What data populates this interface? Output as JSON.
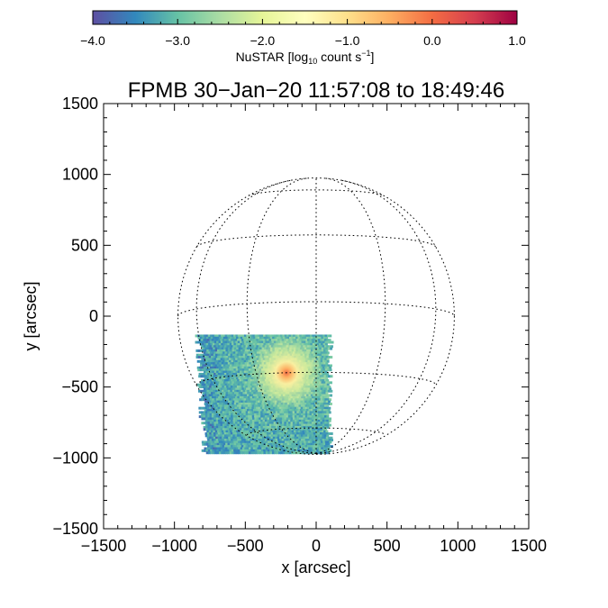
{
  "chart_data": {
    "type": "heatmap",
    "title": "FPMB 30−Jan−20 11:57:08 to 18:49:46",
    "xlabel": "x [arcsec]",
    "ylabel": "y [arcsec]",
    "xlim": [
      -1500,
      1500
    ],
    "ylim": [
      -1500,
      1500
    ],
    "xticks": [
      -1500,
      -1000,
      -500,
      0,
      500,
      1000,
      1500
    ],
    "yticks": [
      -1500,
      -1000,
      -500,
      0,
      500,
      1000,
      1500
    ],
    "xtick_labels": [
      "−1500",
      "−1000",
      "−500",
      "0",
      "500",
      "1000",
      "1500"
    ],
    "ytick_labels": [
      "−1500",
      "−1000",
      "−500",
      "0",
      "500",
      "1000",
      "1500"
    ],
    "colorbar": {
      "label_main": "NuSTAR [log",
      "label_sub": "10",
      "label_rest": " count s",
      "label_sup": "−1",
      "label_end": "]",
      "range": [
        -4.0,
        1.0
      ],
      "ticks": [
        -4.0,
        -3.0,
        -2.0,
        -1.0,
        0.0,
        1.0
      ],
      "tick_labels": [
        "−4.0",
        "−3.0",
        "−2.0",
        "−1.0",
        "0.0",
        "1.0"
      ],
      "colormap": "Spectral_r"
    },
    "solar_disk": {
      "radius_arcsec": 975,
      "grid_spacing_deg": 30,
      "style": "dotted"
    },
    "emission_region": {
      "x_range": [
        -830,
        120
      ],
      "y_range": [
        -960,
        -130
      ],
      "background_level": -3.3,
      "peak": {
        "x": -210,
        "y": -400,
        "level": -0.2
      }
    },
    "grid": false
  }
}
